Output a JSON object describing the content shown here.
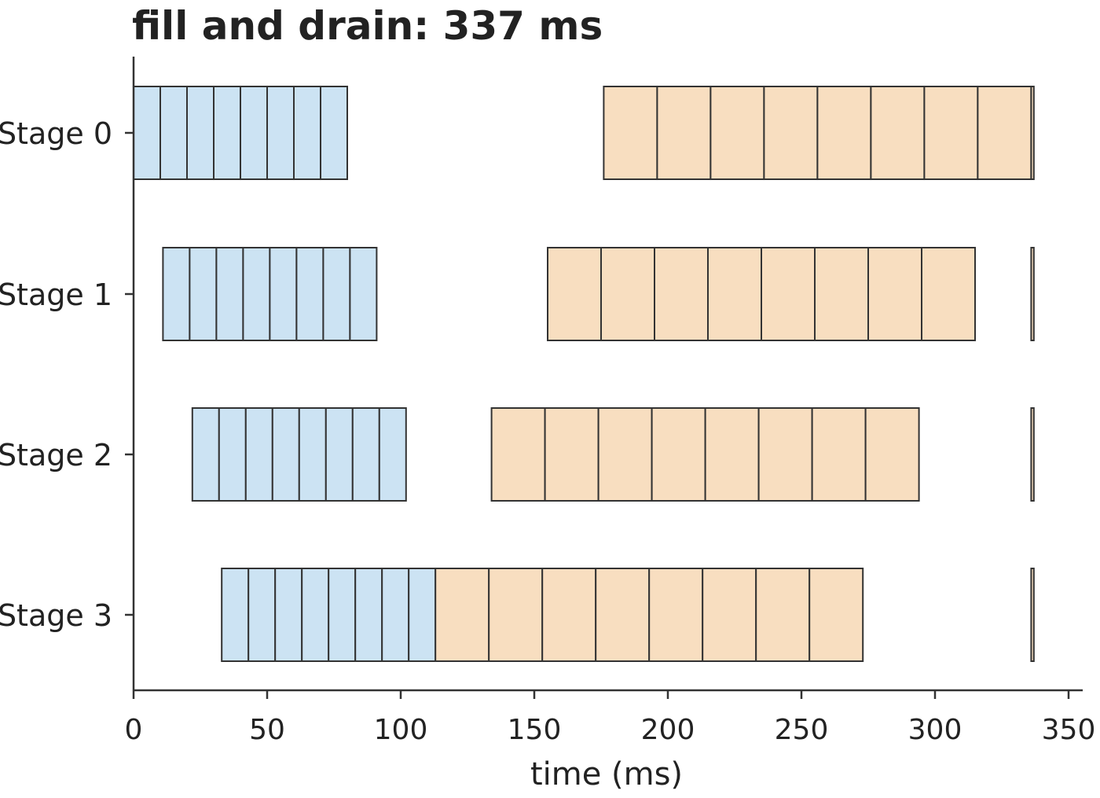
{
  "chart_data": {
    "type": "gantt",
    "title": "fill and drain:  337 ms",
    "xlabel": "time (ms)",
    "xlim": [
      0,
      350
    ],
    "xticks": [
      0,
      50,
      100,
      150,
      200,
      250,
      300,
      350
    ],
    "categories": [
      "Stage 0",
      "Stage 1",
      "Stage 2",
      "Stage 3"
    ],
    "colors": {
      "forward": "#cce3f3",
      "backward": "#f8dec0",
      "edge": "#333333"
    },
    "series": [
      {
        "stage": "Stage 0",
        "forward": [
          [
            0,
            10
          ],
          [
            10,
            20
          ],
          [
            20,
            30
          ],
          [
            30,
            40
          ],
          [
            40,
            50
          ],
          [
            50,
            60
          ],
          [
            60,
            70
          ],
          [
            70,
            80
          ]
        ],
        "backward": [
          [
            176,
            196
          ],
          [
            196,
            216
          ],
          [
            216,
            236
          ],
          [
            236,
            256
          ],
          [
            256,
            276
          ],
          [
            276,
            296
          ],
          [
            296,
            316
          ],
          [
            316,
            336
          ],
          [
            336,
            337
          ]
        ]
      },
      {
        "stage": "Stage 1",
        "forward": [
          [
            11,
            21
          ],
          [
            21,
            31
          ],
          [
            31,
            41
          ],
          [
            41,
            51
          ],
          [
            51,
            61
          ],
          [
            61,
            71
          ],
          [
            71,
            81
          ],
          [
            81,
            91
          ]
        ],
        "backward": [
          [
            155,
            175
          ],
          [
            175,
            195
          ],
          [
            195,
            215
          ],
          [
            215,
            235
          ],
          [
            235,
            255
          ],
          [
            255,
            275
          ],
          [
            275,
            295
          ],
          [
            295,
            315
          ],
          [
            336,
            337
          ]
        ]
      },
      {
        "stage": "Stage 2",
        "forward": [
          [
            22,
            32
          ],
          [
            32,
            42
          ],
          [
            42,
            52
          ],
          [
            52,
            62
          ],
          [
            62,
            72
          ],
          [
            72,
            82
          ],
          [
            82,
            92
          ],
          [
            92,
            102
          ]
        ],
        "backward": [
          [
            134,
            154
          ],
          [
            154,
            174
          ],
          [
            174,
            194
          ],
          [
            194,
            214
          ],
          [
            214,
            234
          ],
          [
            234,
            254
          ],
          [
            254,
            274
          ],
          [
            274,
            294
          ],
          [
            336,
            337
          ]
        ]
      },
      {
        "stage": "Stage 3",
        "forward": [
          [
            33,
            43
          ],
          [
            43,
            53
          ],
          [
            53,
            63
          ],
          [
            63,
            73
          ],
          [
            73,
            83
          ],
          [
            83,
            93
          ],
          [
            93,
            103
          ],
          [
            103,
            113
          ]
        ],
        "backward": [
          [
            113,
            133
          ],
          [
            133,
            153
          ],
          [
            153,
            173
          ],
          [
            173,
            193
          ],
          [
            193,
            213
          ],
          [
            213,
            233
          ],
          [
            233,
            253
          ],
          [
            253,
            273
          ],
          [
            336,
            337
          ]
        ]
      }
    ]
  }
}
